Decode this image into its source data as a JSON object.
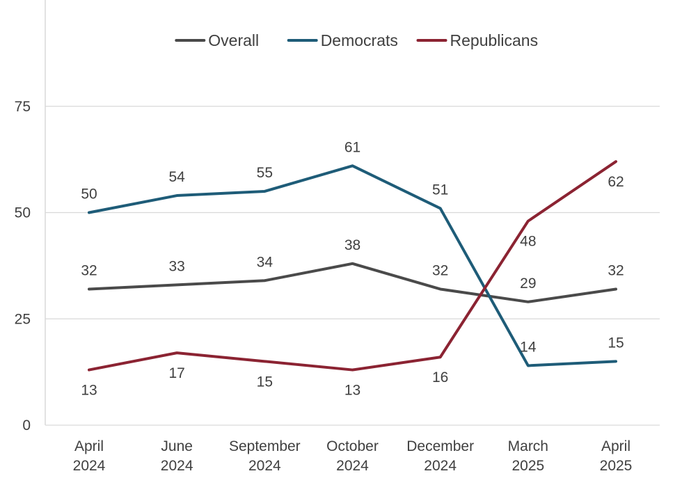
{
  "chart_data": {
    "type": "line",
    "title": "",
    "xlabel": "",
    "ylabel": "",
    "categories": [
      [
        "April",
        "2024"
      ],
      [
        "June",
        "2024"
      ],
      [
        "September",
        "2024"
      ],
      [
        "October",
        "2024"
      ],
      [
        "December",
        "2024"
      ],
      [
        "March",
        "2025"
      ],
      [
        "April",
        "2025"
      ]
    ],
    "ylim": [
      0,
      100
    ],
    "yticks": [
      0,
      25,
      50,
      75
    ],
    "grid": true,
    "legend_position": "top-center",
    "series": [
      {
        "name": "Overall",
        "color": "#4a4a4a",
        "values": [
          32,
          33,
          34,
          38,
          32,
          29,
          32
        ],
        "label_side": [
          "above",
          "above",
          "above",
          "above",
          "above",
          "above",
          "above"
        ]
      },
      {
        "name": "Democrats",
        "color": "#1e5c78",
        "values": [
          50,
          54,
          55,
          61,
          51,
          14,
          15
        ],
        "label_side": [
          "above",
          "above",
          "above",
          "above",
          "above",
          "above",
          "above"
        ]
      },
      {
        "name": "Republicans",
        "color": "#8b2332",
        "values": [
          13,
          17,
          15,
          13,
          16,
          48,
          62
        ],
        "label_side": [
          "below",
          "below",
          "below",
          "below",
          "below",
          "below",
          "below"
        ]
      }
    ]
  }
}
